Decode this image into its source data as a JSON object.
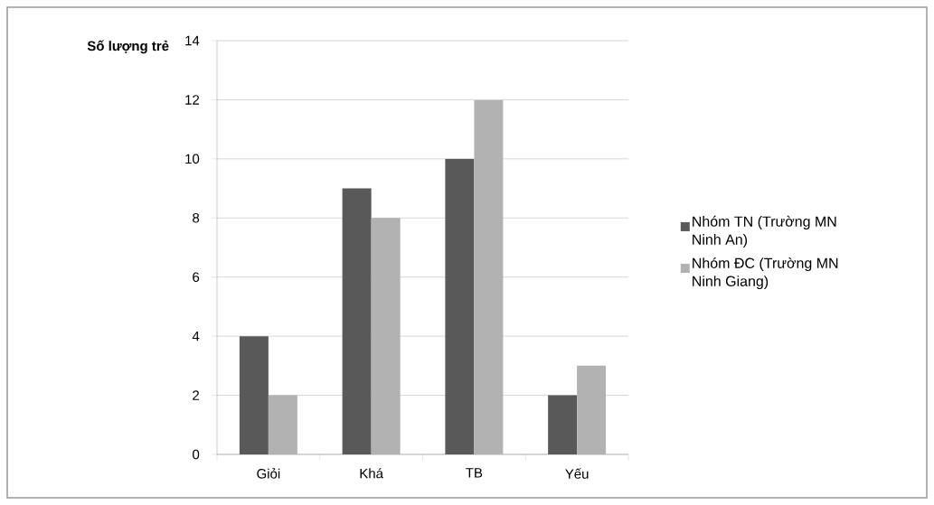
{
  "chart_data": {
    "type": "bar",
    "ylabel": "Số lượng trẻ",
    "categories": [
      "Giỏi",
      "Khá",
      "TB",
      "Yếu"
    ],
    "series": [
      {
        "name": "Nhóm TN (Trường MN Ninh An)",
        "color": "#595959",
        "values": [
          4,
          9,
          10,
          2
        ]
      },
      {
        "name": "Nhóm ĐC (Trường MN Ninh Giang)",
        "color": "#b2b2b2",
        "values": [
          2,
          8,
          12,
          3
        ]
      }
    ],
    "ylim": [
      0,
      14
    ],
    "yticks": [
      0,
      2,
      4,
      6,
      8,
      10,
      12,
      14
    ],
    "grid": "y",
    "legend": "right"
  }
}
